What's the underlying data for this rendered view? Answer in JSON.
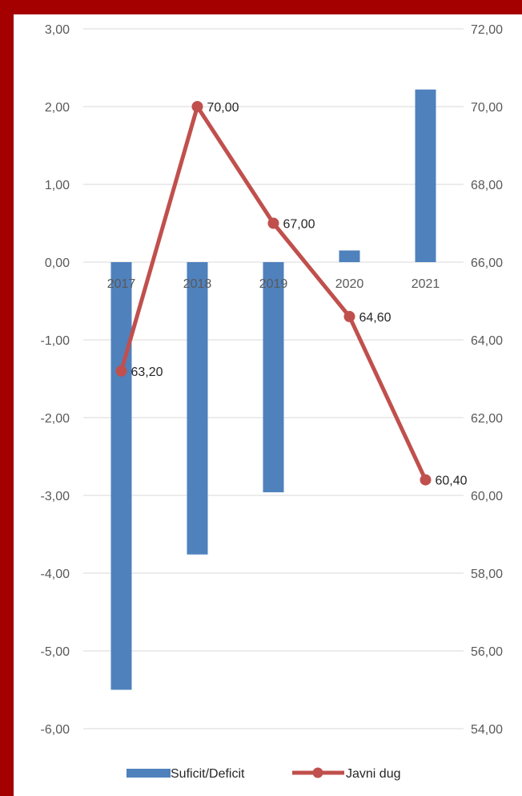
{
  "colors": {
    "frame": "#a50000",
    "background": "#ffffff",
    "bar": "#4f81bd",
    "line": "#c0504d",
    "grid": "#d9d9d9"
  },
  "chart_data": {
    "type": "bar",
    "title": "",
    "categories": [
      "2017",
      "2018",
      "2019",
      "2020",
      "2021"
    ],
    "y_left": {
      "range": [
        -6,
        3
      ],
      "ticks": [
        "-6,00",
        "-5,00",
        "-4,00",
        "-3,00",
        "-2,00",
        "-1,00",
        "0,00",
        "1,00",
        "2,00",
        "3,00"
      ]
    },
    "y_right": {
      "range": [
        54,
        72
      ],
      "ticks": [
        "54,00",
        "56,00",
        "58,00",
        "60,00",
        "62,00",
        "64,00",
        "66,00",
        "68,00",
        "70,00",
        "72,00"
      ]
    },
    "series": [
      {
        "name": "Suficit/Deficit",
        "type": "bar",
        "axis": "left",
        "values": [
          -5.5,
          -3.76,
          -2.96,
          0.15,
          2.22
        ]
      },
      {
        "name": "Javni dug",
        "type": "line",
        "axis": "right",
        "values": [
          63.2,
          70.0,
          67.0,
          64.6,
          60.4
        ],
        "labels": [
          "63,20",
          "70,00",
          "67,00",
          "64,60",
          "60,40"
        ]
      }
    ],
    "grid": true,
    "legend": "bottom"
  }
}
